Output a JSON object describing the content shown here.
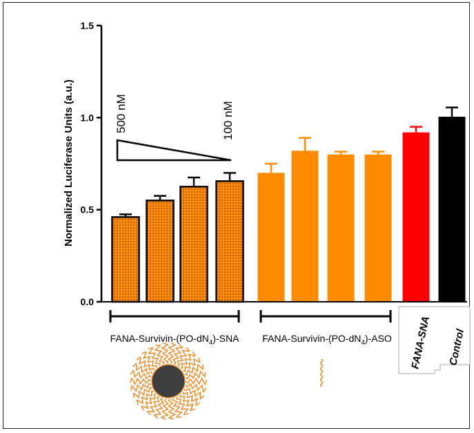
{
  "chart_data": {
    "type": "bar",
    "ylabel": "Normalized Luciferase Units (a.u.)",
    "ylim": [
      0,
      1.5
    ],
    "yticks": [
      "0.0",
      "0.5",
      "1.0",
      "1.5"
    ],
    "grid": false,
    "bars": [
      {
        "group": "SNA",
        "value": 0.46,
        "error": 0.015,
        "color": "#FF8C00",
        "pattern": "dotted"
      },
      {
        "group": "SNA",
        "value": 0.55,
        "error": 0.025,
        "color": "#FF8C00",
        "pattern": "dotted"
      },
      {
        "group": "SNA",
        "value": 0.625,
        "error": 0.05,
        "color": "#FF8C00",
        "pattern": "dotted"
      },
      {
        "group": "SNA",
        "value": 0.655,
        "error": 0.045,
        "color": "#FF8C00",
        "pattern": "dotted"
      },
      {
        "group": "ASO",
        "value": 0.7,
        "error": 0.05,
        "color": "#FF8C00",
        "pattern": "solid"
      },
      {
        "group": "ASO",
        "value": 0.82,
        "error": 0.07,
        "color": "#FF8C00",
        "pattern": "solid"
      },
      {
        "group": "ASO",
        "value": 0.8,
        "error": 0.015,
        "color": "#FF8C00",
        "pattern": "solid"
      },
      {
        "group": "ASO",
        "value": 0.8,
        "error": 0.015,
        "color": "#FF8C00",
        "pattern": "solid"
      },
      {
        "group": "FANA-SNA",
        "value": 0.92,
        "error": 0.03,
        "color": "#FF0000",
        "pattern": "solid"
      },
      {
        "group": "Control",
        "value": 1.005,
        "error": 0.05,
        "color": "#000000",
        "pattern": "solid"
      }
    ],
    "group_labels": {
      "sna": {
        "prefix": "FANA-Survivin-(PO-dN",
        "sub": "4",
        "suffix": ")-SNA"
      },
      "aso": {
        "prefix": "FANA-Survivin-(PO-dN",
        "sub": "4",
        "suffix": ")-ASO"
      },
      "fana_sna": "FANA-SNA",
      "control": "Control"
    },
    "annotations": {
      "high_conc": "500 nM",
      "low_conc": "100 nM"
    }
  }
}
